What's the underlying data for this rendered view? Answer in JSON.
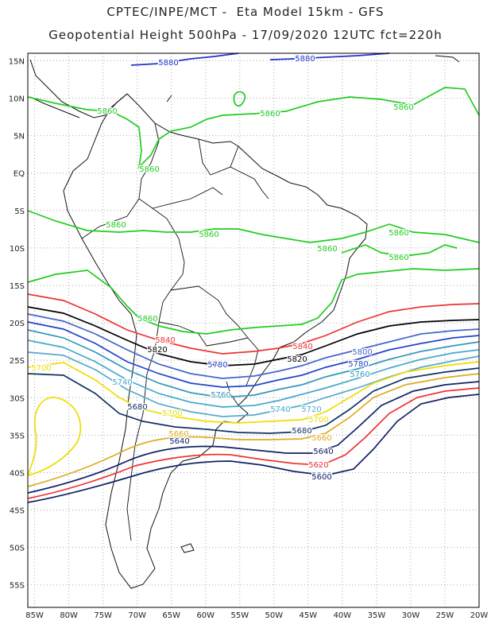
{
  "header": {
    "title_line1": "CPTEC/INPE/MCT -  Eta Model 15km - GFS",
    "title_line2": "Geopotential Height 500hPa - 17/09/2020 12UTC fct=220h"
  },
  "axes": {
    "lat_labels": [
      "15N",
      "10N",
      "5N",
      "EQ",
      "5S",
      "10S",
      "15S",
      "20S",
      "25S",
      "30S",
      "35S",
      "40S",
      "45S",
      "50S",
      "55S"
    ],
    "lon_labels": [
      "85W",
      "80W",
      "75W",
      "70W",
      "65W",
      "60W",
      "55W",
      "50W",
      "45W",
      "40W",
      "35W",
      "30W",
      "25W",
      "20W"
    ],
    "lat_range": [
      -58,
      16
    ],
    "lon_range": [
      -86,
      -20
    ],
    "grid": "dotted"
  },
  "colors": {
    "5860": "#22cc22",
    "5880": "#2233cc",
    "5840": "#ee3333",
    "5820": "#000000",
    "5800": "#4466cc",
    "5780": "#2244cc",
    "5760": "#3399bb",
    "5740": "#44aacc",
    "5720": "#55aacc",
    "5700": "#eedd00",
    "5680": "#113366",
    "5660": "#ddaa22",
    "5640": "#112266",
    "5620": "#ee3333",
    "5600": "#112266",
    "coast": "#111111"
  },
  "contour_labels": [
    {
      "text": "5880",
      "color": "5880"
    },
    {
      "text": "5880",
      "color": "5880"
    },
    {
      "text": "5860",
      "color": "5860"
    },
    {
      "text": "5860",
      "color": "5860"
    },
    {
      "text": "5860",
      "color": "5860"
    },
    {
      "text": "5860",
      "color": "5860"
    },
    {
      "text": "5860",
      "color": "5860"
    },
    {
      "text": "5860",
      "color": "5860"
    },
    {
      "text": "5860",
      "color": "5860"
    },
    {
      "text": "5860",
      "color": "5860"
    },
    {
      "text": "5860",
      "color": "5860"
    },
    {
      "text": "5860",
      "color": "5860"
    },
    {
      "text": "5840",
      "color": "5840"
    },
    {
      "text": "5840",
      "color": "5840"
    },
    {
      "text": "5820",
      "color": "5820"
    },
    {
      "text": "5820",
      "color": "5820"
    },
    {
      "text": "5800",
      "color": "5800"
    },
    {
      "text": "5800",
      "color": "5800"
    },
    {
      "text": "5780",
      "color": "5780"
    },
    {
      "text": "5780",
      "color": "5780"
    },
    {
      "text": "5760",
      "color": "5760"
    },
    {
      "text": "5760",
      "color": "5760"
    },
    {
      "text": "5740",
      "color": "5740"
    },
    {
      "text": "5740",
      "color": "5740"
    },
    {
      "text": "5720",
      "color": "5720"
    },
    {
      "text": "5700",
      "color": "5700"
    },
    {
      "text": "5700",
      "color": "5700"
    },
    {
      "text": "5700",
      "color": "5700"
    },
    {
      "text": "5680",
      "color": "5680"
    },
    {
      "text": "5680",
      "color": "5680"
    },
    {
      "text": "5660",
      "color": "5660"
    },
    {
      "text": "5660",
      "color": "5660"
    },
    {
      "text": "5640",
      "color": "5640"
    },
    {
      "text": "5640",
      "color": "5640"
    },
    {
      "text": "5620",
      "color": "5620"
    },
    {
      "text": "5600",
      "color": "5600"
    }
  ]
}
